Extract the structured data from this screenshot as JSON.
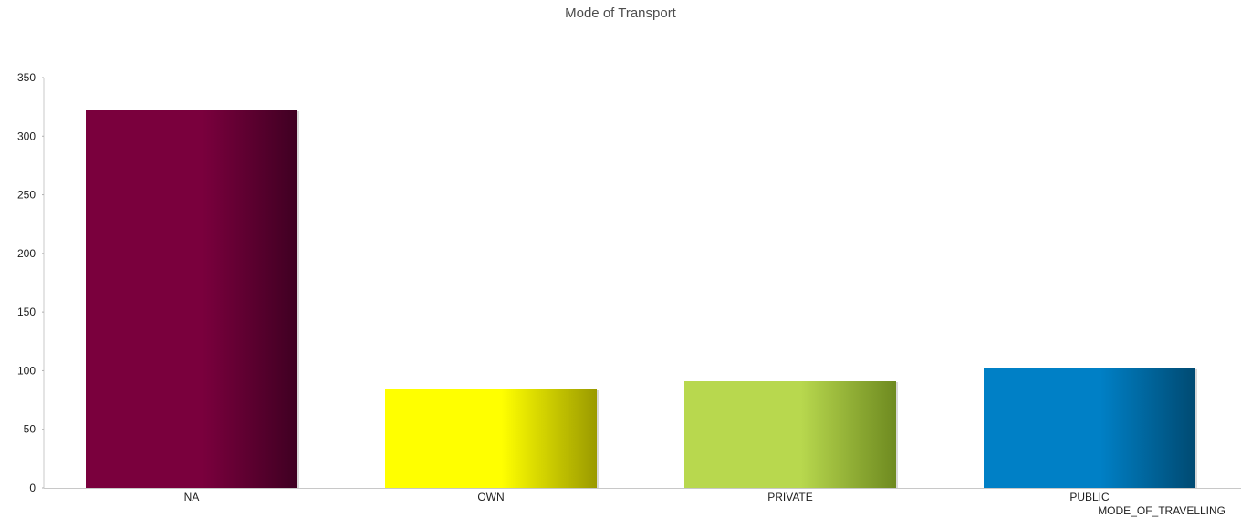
{
  "chart_data": {
    "type": "bar",
    "title": "Mode of Transport",
    "xlabel": "MODE_OF_TRAVELLING",
    "ylabel": "",
    "categories": [
      "NA",
      "OWN",
      "PRIVATE",
      "PUBLIC"
    ],
    "values": [
      322,
      84,
      91,
      102
    ],
    "ylim": [
      0,
      350
    ],
    "yticks": [
      "0",
      "50",
      "100",
      "150",
      "200",
      "250",
      "300",
      "350"
    ],
    "grid": false,
    "colors": [
      [
        "#7a003d",
        "#3f0022"
      ],
      [
        "#ffff00",
        "#9a9a00"
      ],
      [
        "#b8d84e",
        "#6e8a20"
      ],
      [
        "#0080c6",
        "#004a72"
      ]
    ]
  }
}
